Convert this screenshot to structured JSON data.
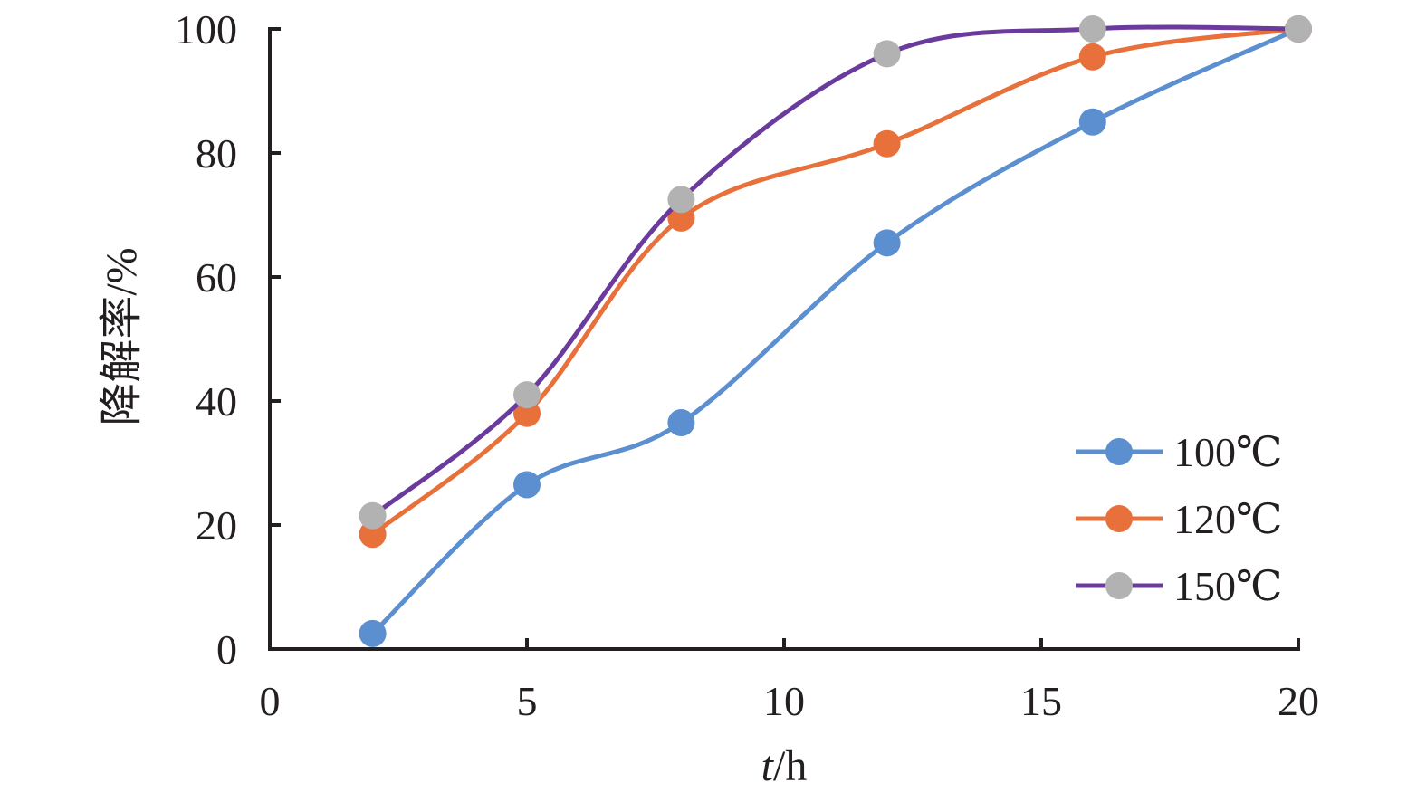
{
  "chart_data": {
    "type": "line",
    "xlabel_italic": "t",
    "xlabel_unit": "/h",
    "ylabel": "降解率/%",
    "xlim": [
      0,
      20
    ],
    "ylim": [
      0,
      100
    ],
    "xticks": [
      0,
      5,
      10,
      15,
      20
    ],
    "yticks": [
      0,
      20,
      40,
      60,
      80,
      100
    ],
    "grid": false,
    "legend": "bottom-right",
    "x": [
      2,
      5,
      8,
      12,
      16,
      20
    ],
    "series": [
      {
        "name": "100℃",
        "line_color": "#5b8fd0",
        "marker_color": "#5b8fd0",
        "values": [
          2.5,
          26.5,
          36.5,
          65.5,
          85,
          100
        ]
      },
      {
        "name": "120℃",
        "line_color": "#e8703a",
        "marker_color": "#e8703a",
        "values": [
          18.5,
          38,
          69.5,
          81.5,
          95.5,
          100
        ]
      },
      {
        "name": "150℃",
        "line_color": "#6a3a9c",
        "marker_color": "#b2b2b2",
        "values": [
          21.5,
          41,
          72.5,
          96,
          100,
          100
        ]
      }
    ]
  }
}
